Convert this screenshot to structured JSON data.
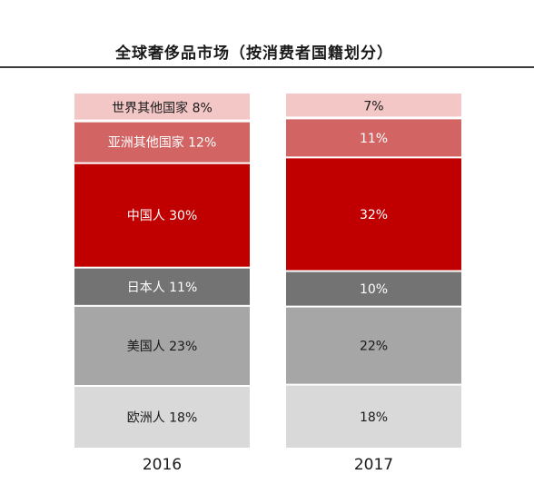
{
  "chart_data": {
    "type": "bar",
    "stacked": true,
    "normalized": true,
    "title": "全球奢侈品市场（按消费者国籍划分）",
    "xlabel": "",
    "ylabel": "",
    "ylim": [
      0,
      100
    ],
    "categories": [
      "2016",
      "2017"
    ],
    "series": [
      {
        "name": "欧洲人",
        "values": [
          18,
          18
        ],
        "labels": [
          "欧洲人 18%",
          "18%"
        ],
        "color": "#d9d9d9",
        "text_color": "#1a1a1a"
      },
      {
        "name": "美国人",
        "values": [
          23,
          22
        ],
        "labels": [
          "美国人 23%",
          "22%"
        ],
        "color": "#a6a6a6",
        "text_color": "#1a1a1a"
      },
      {
        "name": "日本人",
        "values": [
          11,
          10
        ],
        "labels": [
          "日本人 11%",
          "10%"
        ],
        "color": "#737373",
        "text_color": "#ffffff"
      },
      {
        "name": "中国人",
        "values": [
          30,
          32
        ],
        "labels": [
          "中国人 30%",
          "32%"
        ],
        "color": "#c00000",
        "text_color": "#ffffff"
      },
      {
        "name": "亚洲其他国家",
        "values": [
          12,
          11
        ],
        "labels": [
          "亚洲其他国家 12%",
          "11%"
        ],
        "color": "#d26464",
        "text_color": "#ffffff"
      },
      {
        "name": "世界其他国家",
        "values": [
          8,
          7
        ],
        "labels": [
          "世界其他国家 8%",
          "7%"
        ],
        "color": "#f4c7c7",
        "text_color": "#1a1a1a"
      }
    ],
    "grid": false,
    "legend": "none"
  }
}
